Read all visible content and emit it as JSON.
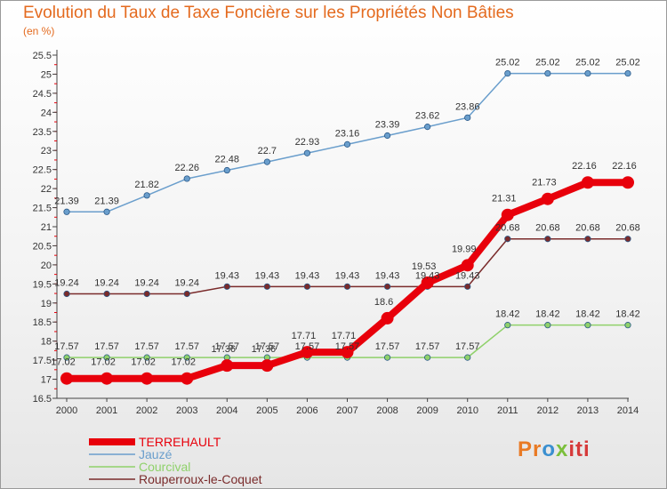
{
  "chart_data": {
    "type": "line",
    "title": "Evolution du Taux de Taxe Foncière sur les Propriétés Non Bâties",
    "ylabel": "(en %)",
    "ylim": [
      16.5,
      25.5
    ],
    "yticks": [
      "16.5",
      "17",
      "17.5",
      "18",
      "18.5",
      "19",
      "19.5",
      "20",
      "20.5",
      "21",
      "21.5",
      "22",
      "22.5",
      "23",
      "23.5",
      "24",
      "24.5",
      "25",
      "25.5"
    ],
    "x": [
      "2000",
      "2001",
      "2002",
      "2003",
      "2004",
      "2005",
      "2006",
      "2007",
      "2008",
      "2009",
      "2010",
      "2011",
      "2012",
      "2013",
      "2014"
    ],
    "grid": false,
    "legend": "bottom-left",
    "series": [
      {
        "name": "TERREHAULT",
        "color": "#e8000b",
        "values": [
          17.02,
          17.02,
          17.02,
          17.02,
          17.36,
          17.36,
          17.71,
          17.71,
          18.6,
          19.53,
          19.99,
          21.31,
          21.73,
          22.16,
          22.16
        ],
        "labels": [
          "17.02",
          "17.02",
          "17.02",
          "17.02",
          "17.36",
          "17.36",
          "17.71",
          "17.71",
          "18.6",
          "19.53",
          "19.99",
          "21.31",
          "21.73",
          "22.16",
          "22.16"
        ]
      },
      {
        "name": "Jauzé",
        "color": "#6a9ecc",
        "values": [
          21.39,
          21.39,
          21.82,
          22.26,
          22.48,
          22.7,
          22.93,
          23.16,
          23.39,
          23.62,
          23.86,
          25.02,
          25.02,
          25.02,
          25.02
        ],
        "labels": [
          "21.39",
          "21.39",
          "21.82",
          "22.26",
          "22.48",
          "22.7",
          "22.93",
          "23.16",
          "23.39",
          "23.62",
          "23.86",
          "25.02",
          "25.02",
          "25.02",
          "25.02"
        ]
      },
      {
        "name": "Courcival",
        "color": "#8fd16a",
        "values": [
          17.57,
          17.57,
          17.57,
          17.57,
          17.57,
          17.57,
          17.57,
          17.57,
          17.57,
          17.57,
          17.57,
          18.42,
          18.42,
          18.42,
          18.42
        ],
        "labels": [
          "17.57",
          "17.57",
          "17.57",
          "17.57",
          "17.57",
          "17.57",
          "17.57",
          "17.57",
          "17.57",
          "17.57",
          "17.57",
          "18.42",
          "18.42",
          "18.42",
          "18.42"
        ]
      },
      {
        "name": "Rouperroux-le-Coquet",
        "color": "#7a2b2b",
        "values": [
          19.24,
          19.24,
          19.24,
          19.24,
          19.43,
          19.43,
          19.43,
          19.43,
          19.43,
          19.43,
          19.43,
          20.68,
          20.68,
          20.68,
          20.68
        ],
        "labels": [
          "19.24",
          "19.24",
          "19.24",
          "19.24",
          "19.43",
          "19.43",
          "19.43",
          "19.43",
          "19.43",
          "19.43",
          "19.43",
          "20.68",
          "20.68",
          "20.68",
          "20.68"
        ]
      }
    ]
  },
  "logo": {
    "p1": "Pr",
    "p2": "o",
    "p3": "x",
    "p4": "iti"
  }
}
